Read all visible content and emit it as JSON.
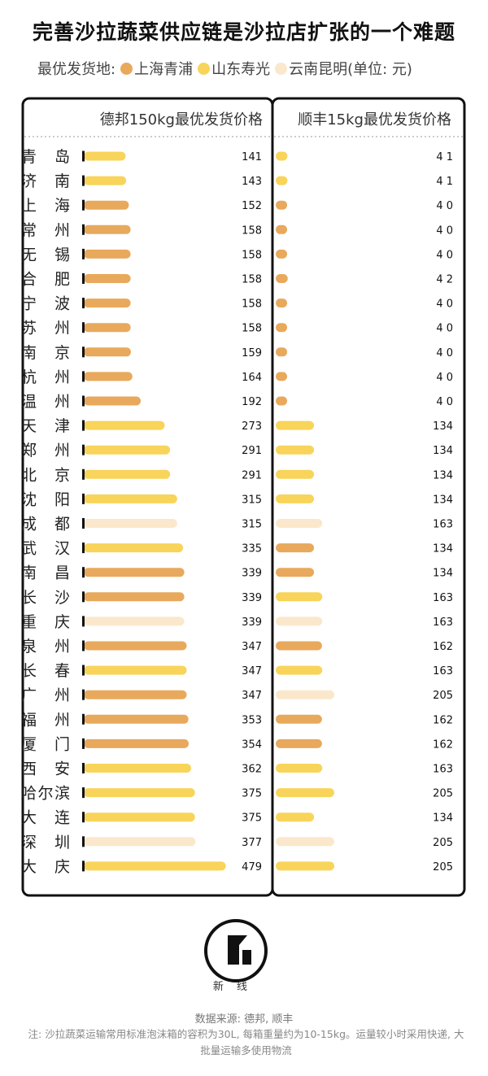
{
  "title": "完善沙拉蔬菜供应链是沙拉店扩张的一个难题",
  "legend": {
    "prefix": "最优发货地:",
    "items": [
      {
        "key": "shanghai",
        "label": "上海青浦",
        "color": "#e8a95c"
      },
      {
        "key": "shandong",
        "label": "山东寿光",
        "color": "#f8d45a"
      },
      {
        "key": "yunnan",
        "label": "云南昆明",
        "color": "#fbe8cc"
      }
    ],
    "unit": "(单位: 元)"
  },
  "chart_data": {
    "type": "bar",
    "columns": [
      {
        "header": "德邦150kg最优发货价格",
        "xlim": [
          0,
          500
        ]
      },
      {
        "header": "顺丰15kg最优发货价格",
        "xlim": [
          0,
          500
        ]
      }
    ],
    "categories": [
      "青 岛",
      "济 南",
      "上 海",
      "常 州",
      "无 锡",
      "合 肥",
      "宁 波",
      "苏 州",
      "南 京",
      "杭 州",
      "温 州",
      "天 津",
      "郑 州",
      "北 京",
      "沈 阳",
      "成 都",
      "武 汉",
      "南 昌",
      "长 沙",
      "重 庆",
      "泉 州",
      "长 春",
      "广 州",
      "福 州",
      "厦 门",
      "西 安",
      "哈尔滨",
      "大 连",
      "深 圳",
      "大 庆"
    ],
    "series": [
      {
        "values": [
          141,
          143,
          152,
          158,
          158,
          158,
          158,
          158,
          159,
          164,
          192,
          273,
          291,
          291,
          315,
          315,
          335,
          339,
          339,
          339,
          347,
          347,
          347,
          353,
          354,
          362,
          375,
          375,
          377,
          479
        ],
        "origins": [
          "shandong",
          "shandong",
          "shanghai",
          "shanghai",
          "shanghai",
          "shanghai",
          "shanghai",
          "shanghai",
          "shanghai",
          "shanghai",
          "shanghai",
          "shandong",
          "shandong",
          "shandong",
          "shandong",
          "yunnan",
          "shandong",
          "shanghai",
          "shanghai",
          "yunnan",
          "shanghai",
          "shandong",
          "shanghai",
          "shanghai",
          "shanghai",
          "shandong",
          "shandong",
          "shandong",
          "yunnan",
          "shandong"
        ]
      },
      {
        "values": [
          41,
          41,
          40,
          40,
          40,
          42,
          40,
          40,
          40,
          40,
          40,
          134,
          134,
          134,
          134,
          163,
          134,
          134,
          163,
          163,
          162,
          163,
          205,
          162,
          162,
          163,
          205,
          134,
          205,
          205
        ],
        "labels": [
          "4 1",
          "4 1",
          "4 0",
          "4 0",
          "4 0",
          "4 2",
          "4 0",
          "4 0",
          "4 0",
          "4 0",
          "4 0",
          "134",
          "134",
          "134",
          "134",
          "163",
          "134",
          "134",
          "163",
          "163",
          "162",
          "163",
          "205",
          "162",
          "162",
          "163",
          "205",
          "134",
          "205",
          "205"
        ],
        "origins": [
          "shandong",
          "shandong",
          "shanghai",
          "shanghai",
          "shanghai",
          "shanghai",
          "shanghai",
          "shanghai",
          "shanghai",
          "shanghai",
          "shanghai",
          "shandong",
          "shandong",
          "shandong",
          "shandong",
          "yunnan",
          "shanghai",
          "shanghai",
          "shandong",
          "yunnan",
          "shanghai",
          "shandong",
          "yunnan",
          "shanghai",
          "shanghai",
          "shandong",
          "shandong",
          "shandong",
          "yunnan",
          "shandong"
        ]
      }
    ]
  },
  "logo": {
    "label": "新 线"
  },
  "source": "数据来源: 德邦, 顺丰",
  "note": "注: 沙拉蔬菜运输常用标准泡沫箱的容积为30L, 每箱重量约为10-15kg。运量较小时采用快递, 大批量运输多使用物流"
}
